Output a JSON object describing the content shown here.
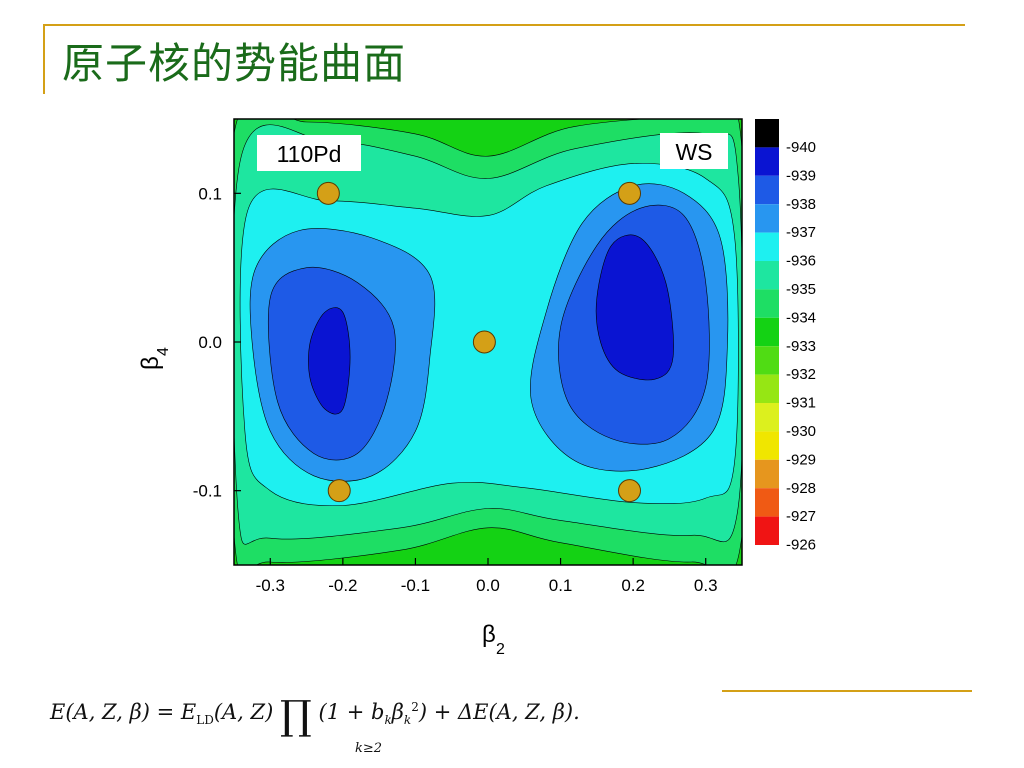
{
  "slide": {
    "title": "原子核的势能曲面",
    "formula": {
      "lhs": "E(A, Z, β) = E",
      "ld_sub": "LD",
      "mid": "(A, Z)",
      "prod_symbol": "∏",
      "prod_sub": "k≥2",
      "paren_open": "(1 + b",
      "k1": "k",
      "beta": "β",
      "k2": "k",
      "sq": "2",
      "tail": ") + ΔE(A, Z, β)."
    }
  },
  "chart_data": {
    "type": "contour",
    "title": "",
    "xlabel": "β",
    "xlabel_sub": "2",
    "ylabel": "β",
    "ylabel_sub": "4",
    "xlim": [
      -0.35,
      0.35
    ],
    "ylim": [
      -0.15,
      0.15
    ],
    "xticks": [
      "-0.3",
      "-0.2",
      "-0.1",
      "0.0",
      "0.1",
      "0.2",
      "0.3"
    ],
    "xtick_values": [
      -0.3,
      -0.2,
      -0.1,
      0.0,
      0.1,
      0.2,
      0.3
    ],
    "yticks": [
      "0.1",
      "0.0",
      "-0.1"
    ],
    "ytick_values": [
      0.1,
      0.0,
      -0.1
    ],
    "annotations": {
      "nucleus": "110Pd",
      "model": "WS"
    },
    "colorbar": {
      "labels": [
        "-940",
        "-939",
        "-938",
        "-937",
        "-936",
        "-935",
        "-934",
        "-933",
        "-932",
        "-931",
        "-930",
        "-929",
        "-928",
        "-927",
        "-926"
      ],
      "colors": [
        "#000000",
        "#0a14d2",
        "#1e5ae6",
        "#2896f0",
        "#1ef0f0",
        "#1ee6a0",
        "#1ede64",
        "#14d214",
        "#50dc14",
        "#96e614",
        "#dcf01e",
        "#f0e600",
        "#e6961e",
        "#f05a14",
        "#f01414"
      ]
    },
    "minima_markers": [
      {
        "x": -0.22,
        "y": 0.1
      },
      {
        "x": -0.205,
        "y": -0.1
      },
      {
        "x": -0.005,
        "y": 0.0
      },
      {
        "x": 0.195,
        "y": 0.1
      },
      {
        "x": 0.195,
        "y": -0.1
      }
    ],
    "marker_color": "#d4a017",
    "contour_levels": [
      {
        "value": -936,
        "color": "#1ee6a0",
        "shapes": [
          "background"
        ]
      },
      {
        "value": -937,
        "color": "#1ef0f0",
        "shapes": [
          "cyan-band"
        ]
      },
      {
        "value": -938,
        "color": "#2896f0",
        "shapes": [
          "left-938",
          "right-938"
        ]
      },
      {
        "value": -939,
        "color": "#1e5ae6",
        "shapes": [
          "left-939",
          "right-939"
        ]
      },
      {
        "value": -940,
        "color": "#0a14d2",
        "shapes": [
          "left-940",
          "right-940"
        ]
      }
    ]
  }
}
